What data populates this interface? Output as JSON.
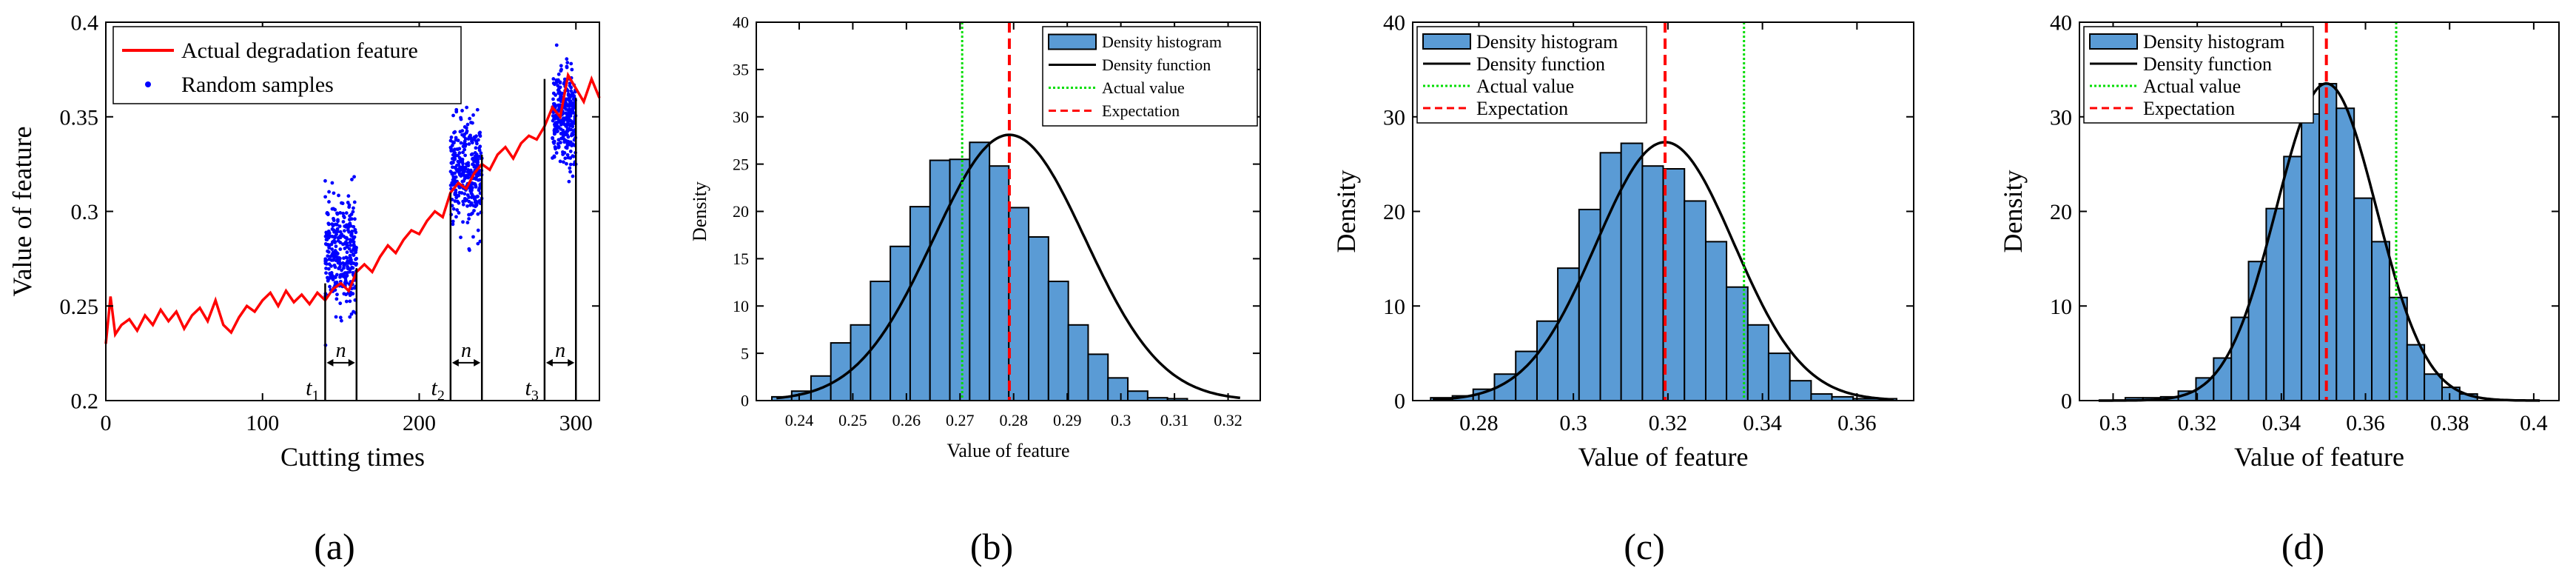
{
  "panel_labels": [
    "(a)",
    "(b)",
    "(c)",
    "(d)"
  ],
  "chart_data": [
    {
      "type": "line",
      "xlabel": "Cutting times",
      "ylabel": "Value of feature",
      "xlim": [
        0,
        315
      ],
      "ylim": [
        0.2,
        0.4
      ],
      "xticks": [
        0,
        100,
        200,
        300
      ],
      "yticks": [
        0.2,
        0.25,
        0.3,
        0.35,
        0.4
      ],
      "xtick_labels": [
        "0",
        "100",
        "200",
        "300"
      ],
      "ytick_labels": [
        "0.2",
        "0.25",
        "0.3",
        "0.35",
        "0.4"
      ],
      "legend": [
        "Actual degradation feature",
        "Random samples"
      ],
      "series": [
        {
          "name": "Actual degradation feature",
          "color": "#ff0000",
          "x": [
            0,
            3,
            6,
            10,
            15,
            20,
            25,
            30,
            35,
            40,
            45,
            50,
            55,
            60,
            65,
            70,
            75,
            80,
            85,
            90,
            95,
            100,
            105,
            110,
            115,
            120,
            125,
            130,
            135,
            140,
            145,
            150,
            155,
            160,
            165,
            170,
            175,
            180,
            185,
            190,
            195,
            200,
            205,
            210,
            215,
            220,
            225,
            230,
            235,
            240,
            245,
            250,
            255,
            260,
            265,
            270,
            275,
            280,
            285,
            290,
            295,
            300,
            305,
            310,
            315
          ],
          "y": [
            0.23,
            0.255,
            0.235,
            0.24,
            0.243,
            0.237,
            0.245,
            0.24,
            0.248,
            0.242,
            0.247,
            0.238,
            0.245,
            0.249,
            0.242,
            0.253,
            0.24,
            0.236,
            0.244,
            0.25,
            0.247,
            0.253,
            0.257,
            0.25,
            0.258,
            0.252,
            0.256,
            0.251,
            0.257,
            0.253,
            0.259,
            0.262,
            0.258,
            0.268,
            0.272,
            0.268,
            0.276,
            0.282,
            0.278,
            0.285,
            0.29,
            0.288,
            0.295,
            0.3,
            0.297,
            0.31,
            0.315,
            0.312,
            0.32,
            0.325,
            0.322,
            0.33,
            0.334,
            0.328,
            0.336,
            0.34,
            0.338,
            0.345,
            0.355,
            0.35,
            0.372,
            0.365,
            0.358,
            0.37,
            0.36
          ]
        },
        {
          "name": "Random samples",
          "color": "#0000ff",
          "clusters": [
            {
              "x_range": [
                140,
                160
              ],
              "mean": 0.278,
              "sd": 0.014
            },
            {
              "x_range": [
                220,
                240
              ],
              "mean": 0.32,
              "sd": 0.014
            },
            {
              "x_range": [
                285,
                300
              ],
              "mean": 0.35,
              "sd": 0.012
            }
          ]
        }
      ],
      "annotations": [
        {
          "label": "t",
          "sub": "1",
          "x_start": 140,
          "x_end": 160
        },
        {
          "label": "t",
          "sub": "2",
          "x_start": 220,
          "x_end": 240
        },
        {
          "label": "t",
          "sub": "3",
          "x_start": 280,
          "x_end": 300
        }
      ],
      "annotation_n": "n"
    },
    {
      "type": "bar",
      "title": "",
      "xlabel": "Value of feature",
      "ylabel": "Density",
      "xlim": [
        0.232,
        0.326
      ],
      "ylim": [
        0,
        40
      ],
      "xticks": [
        0.24,
        0.25,
        0.26,
        0.27,
        0.28,
        0.29,
        0.3,
        0.31,
        0.32
      ],
      "yticks": [
        0,
        5,
        10,
        15,
        20,
        25,
        30,
        35,
        40
      ],
      "xtick_labels": [
        "0.24",
        "0.25",
        "0.26",
        "0.27",
        "0.28",
        "0.29",
        "0.3",
        "0.31",
        "0.32"
      ],
      "ytick_labels": [
        "0",
        "5",
        "10",
        "15",
        "20",
        "25",
        "30",
        "35",
        "40"
      ],
      "bin_edges": [
        0.2349,
        0.2386,
        0.2422,
        0.2459,
        0.2496,
        0.2533,
        0.257,
        0.2607,
        0.2644,
        0.2681,
        0.2718,
        0.2755,
        0.2791,
        0.2828,
        0.2865,
        0.2902,
        0.2939,
        0.2976,
        0.3013,
        0.305,
        0.3087,
        0.3124
      ],
      "values": [
        0.4,
        1.0,
        2.6,
        6.1,
        8.0,
        12.6,
        16.3,
        20.5,
        25.4,
        25.5,
        27.3,
        24.8,
        20.4,
        17.3,
        12.6,
        8.0,
        4.9,
        2.4,
        1.0,
        0.3,
        0.2
      ],
      "pdf": {
        "mean": 0.2792,
        "sd": 0.0142
      },
      "actual_value": 0.2704,
      "expectation": 0.2792,
      "legend": [
        "Density histogram",
        "Density function",
        "Actual value",
        "Expectation"
      ]
    },
    {
      "type": "bar",
      "xlabel": "Value of feature",
      "ylabel": "Density",
      "xlim": [
        0.266,
        0.372
      ],
      "ylim": [
        0,
        40
      ],
      "xticks": [
        0.28,
        0.3,
        0.32,
        0.34,
        0.36
      ],
      "yticks": [
        0,
        10,
        20,
        30,
        40
      ],
      "xtick_labels": [
        "0.28",
        "0.3",
        "0.32",
        "0.34",
        "0.36"
      ],
      "ytick_labels": [
        "0",
        "10",
        "20",
        "30",
        "40"
      ],
      "bin_edges": [
        0.2698,
        0.2744,
        0.2788,
        0.2833,
        0.2878,
        0.2923,
        0.2967,
        0.3012,
        0.3057,
        0.3101,
        0.3146,
        0.319,
        0.3235,
        0.328,
        0.3324,
        0.3369,
        0.3413,
        0.3458,
        0.3503,
        0.3547,
        0.3592,
        0.3684
      ],
      "values": [
        0.3,
        0.5,
        1.2,
        2.8,
        5.2,
        8.4,
        14.0,
        20.2,
        26.2,
        27.2,
        24.8,
        24.5,
        21.1,
        16.8,
        12.0,
        8.0,
        5.0,
        2.1,
        0.7,
        0.4,
        0.2
      ],
      "pdf": {
        "mean": 0.3194,
        "sd": 0.0146
      },
      "actual_value": 0.3361,
      "expectation": 0.3194,
      "legend": [
        "Density histogram",
        "Density function",
        "Actual value",
        "Expectation"
      ]
    },
    {
      "type": "bar",
      "xlabel": "Value of feature",
      "ylabel": "Density",
      "xlim": [
        0.292,
        0.406
      ],
      "ylim": [
        0,
        40
      ],
      "xticks": [
        0.3,
        0.32,
        0.34,
        0.36,
        0.38,
        0.4
      ],
      "yticks": [
        0,
        10,
        20,
        30,
        40
      ],
      "xtick_labels": [
        "0.3",
        "0.32",
        "0.34",
        "0.36",
        "0.38",
        "0.4"
      ],
      "ytick_labels": [
        "0",
        "10",
        "20",
        "30",
        "40"
      ],
      "bin_edges": [
        0.3029,
        0.3071,
        0.3113,
        0.3155,
        0.3197,
        0.3239,
        0.3281,
        0.3322,
        0.3364,
        0.3406,
        0.3448,
        0.349,
        0.3531,
        0.3573,
        0.3615,
        0.3657,
        0.3699,
        0.374,
        0.3782,
        0.3824,
        0.3866
      ],
      "values": [
        0.3,
        0.3,
        0.4,
        1.0,
        2.4,
        4.5,
        8.8,
        14.7,
        20.3,
        25.8,
        30.3,
        33.5,
        30.9,
        21.4,
        16.8,
        10.9,
        5.9,
        2.8,
        1.4,
        0.7
      ],
      "pdf": {
        "mean": 0.3507,
        "sd": 0.0119
      },
      "actual_value": 0.3673,
      "expectation": 0.3507,
      "legend": [
        "Density histogram",
        "Density function",
        "Actual value",
        "Expectation"
      ]
    }
  ]
}
